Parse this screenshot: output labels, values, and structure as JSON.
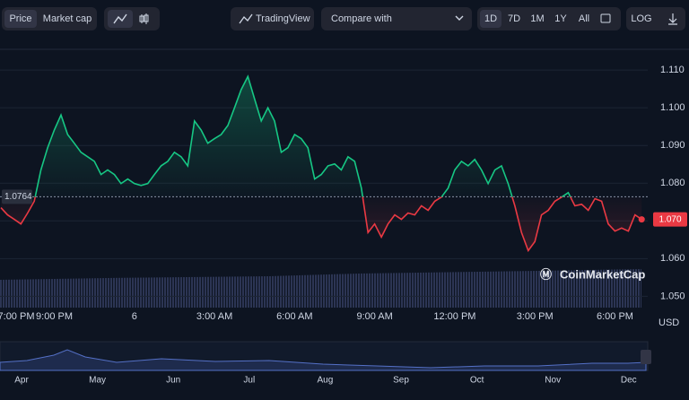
{
  "toolbar": {
    "tabs": [
      "Price",
      "Market cap"
    ],
    "tradingview": "TradingView",
    "compare": "Compare with",
    "ranges": [
      "1D",
      "7D",
      "1M",
      "1Y",
      "All"
    ],
    "log": "LOG"
  },
  "chart_data": {
    "type": "line",
    "categories": [
      "7:00 PM",
      null,
      null,
      null,
      null,
      null,
      null,
      null,
      "9:00 PM",
      null,
      null,
      null,
      null,
      null,
      null,
      null,
      null,
      null,
      null,
      null,
      "6",
      null,
      null,
      null,
      null,
      null,
      null,
      null,
      null,
      null,
      null,
      null,
      "3:00 AM",
      null,
      null,
      null,
      null,
      null,
      null,
      null,
      null,
      null,
      null,
      null,
      "6:00 AM",
      null,
      null,
      null,
      null,
      null,
      null,
      null,
      null,
      null,
      null,
      null,
      "9:00 AM",
      null,
      null,
      null,
      null,
      null,
      null,
      null,
      null,
      null,
      null,
      null,
      "12:00 PM",
      null,
      null,
      null,
      null,
      null,
      null,
      null,
      null,
      null,
      null,
      null,
      "3:00 PM",
      null,
      null,
      null,
      null,
      null,
      null,
      null,
      null,
      null,
      null,
      null,
      "6:00 PM",
      null,
      null,
      null,
      null
    ],
    "values": [
      1.0735,
      1.0716,
      1.0704,
      1.0692,
      1.0721,
      1.0752,
      1.0835,
      1.0894,
      1.0941,
      1.0981,
      1.0929,
      1.0906,
      1.0882,
      1.087,
      1.0858,
      1.0823,
      1.0835,
      1.0823,
      1.0799,
      1.0811,
      1.0799,
      1.0794,
      1.0799,
      1.0823,
      1.0846,
      1.0858,
      1.0882,
      1.087,
      1.0846,
      1.0965,
      1.0941,
      1.0906,
      1.0918,
      1.0929,
      1.0953,
      1.1,
      1.1048,
      1.1083,
      1.1024,
      1.0965,
      1.1,
      1.0965,
      1.0882,
      1.0894,
      1.0929,
      1.0918,
      1.0894,
      1.0811,
      1.0823,
      1.0846,
      1.0851,
      1.0835,
      1.087,
      1.0858,
      1.0787,
      1.0669,
      1.0692,
      1.0657,
      1.0692,
      1.0716,
      1.0704,
      1.0721,
      1.0716,
      1.074,
      1.0728,
      1.0752,
      1.0763,
      1.0787,
      1.0835,
      1.0858,
      1.0846,
      1.0863,
      1.0835,
      1.0799,
      1.0835,
      1.0846,
      1.0799,
      1.074,
      1.0669,
      1.0621,
      1.0645,
      1.0716,
      1.0728,
      1.0752,
      1.0763,
      1.0775,
      1.074,
      1.0744,
      1.0728,
      1.0759,
      1.0752,
      1.0692,
      1.0673,
      1.0681,
      1.0673,
      1.0716,
      1.0704
    ],
    "baseline": {
      "value": 1.0764,
      "label": "1.0764"
    },
    "price_tag": "1.070",
    "up_color": "#16c784",
    "down_color": "#ea3943",
    "ylim": [
      1.047,
      1.1155
    ],
    "yticks": [
      {
        "value": 1.05,
        "label": "1.050"
      },
      {
        "value": 1.06,
        "label": "1.060"
      },
      {
        "value": 1.07,
        "label": "1.070"
      },
      {
        "value": 1.08,
        "label": "1.080"
      },
      {
        "value": 1.09,
        "label": "1.090"
      },
      {
        "value": 1.1,
        "label": "1.100"
      },
      {
        "value": 1.11,
        "label": "1.110"
      }
    ],
    "y_unit": "USD",
    "grid": true,
    "watermark": "CoinMarketCap",
    "navigator_months": [
      "Apr",
      "May",
      "Jun",
      "Jul",
      "Aug",
      "Sep",
      "Oct",
      "Nov",
      "Dec"
    ]
  }
}
